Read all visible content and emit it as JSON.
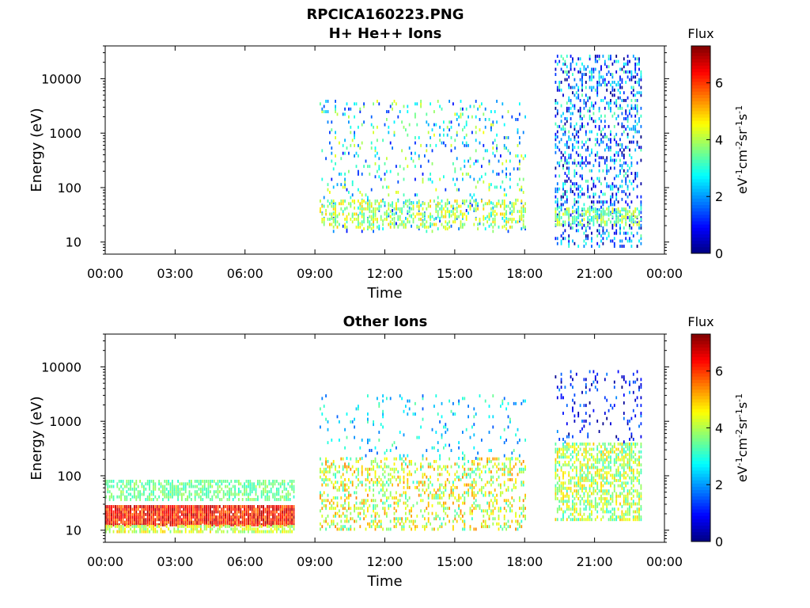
{
  "figure": {
    "title_line1": "RPCICA160223.PNG",
    "title_line2": "H+ He++ Ions"
  },
  "chart_data": [
    {
      "type": "heatmap",
      "title": "H+ He++ Ions",
      "xlabel": "Time",
      "ylabel": "Energy (eV)",
      "x_tick_labels": [
        "00:00",
        "03:00",
        "06:00",
        "09:00",
        "12:00",
        "15:00",
        "18:00",
        "21:00",
        "00:00"
      ],
      "x_range_hours": [
        0,
        24
      ],
      "y_scale": "log",
      "y_tick_labels": [
        "10",
        "100",
        "1000",
        "10000"
      ],
      "y_tick_values": [
        10,
        100,
        1000,
        10000
      ],
      "y_range": [
        6,
        40000
      ],
      "colorbar": {
        "title": "Flux",
        "label": "eV-1cm-2sr-1s-1",
        "range": [
          0,
          7.3
        ],
        "tick_labels": [
          "0",
          "2",
          "4",
          "6"
        ]
      },
      "grid": false,
      "regions": [
        {
          "t_start": 9.2,
          "t_end": 18.0,
          "e_min": 15,
          "e_max": 4000,
          "flux": [
            1,
            4.5
          ],
          "density": 0.1,
          "comment_free": true
        },
        {
          "t_start": 9.2,
          "t_end": 18.0,
          "e_min": 18,
          "e_max": 60,
          "flux": [
            3,
            5
          ],
          "density": 0.35
        },
        {
          "t_start": 19.3,
          "t_end": 23.0,
          "e_min": 8,
          "e_max": 25000,
          "flux": [
            0,
            3.5
          ],
          "density": 0.28
        },
        {
          "t_start": 19.3,
          "t_end": 23.0,
          "e_min": 20,
          "e_max": 40,
          "flux": [
            3,
            4.5
          ],
          "density": 0.5
        }
      ]
    },
    {
      "type": "heatmap",
      "title": "Other Ions",
      "xlabel": "Time",
      "ylabel": "Energy (eV)",
      "x_tick_labels": [
        "00:00",
        "03:00",
        "06:00",
        "09:00",
        "12:00",
        "15:00",
        "18:00",
        "21:00",
        "00:00"
      ],
      "x_range_hours": [
        0,
        24
      ],
      "y_scale": "log",
      "y_tick_labels": [
        "10",
        "100",
        "1000",
        "10000"
      ],
      "y_tick_values": [
        10,
        100,
        1000,
        10000
      ],
      "y_range": [
        6,
        40000
      ],
      "colorbar": {
        "title": "Flux",
        "label": "eV-1cm-2sr-1s-1",
        "range": [
          0,
          7.3
        ],
        "tick_labels": [
          "0",
          "2",
          "4",
          "6"
        ]
      },
      "grid": false,
      "regions": [
        {
          "t_start": 0.0,
          "t_end": 8.1,
          "e_min": 12,
          "e_max": 28,
          "flux": [
            5.5,
            7
          ],
          "density": 0.95
        },
        {
          "t_start": 0.0,
          "t_end": 8.1,
          "e_min": 9,
          "e_max": 12,
          "flux": [
            3.5,
            5
          ],
          "density": 0.6
        },
        {
          "t_start": 0.0,
          "t_end": 8.1,
          "e_min": 35,
          "e_max": 80,
          "flux": [
            3,
            4
          ],
          "density": 0.55
        },
        {
          "t_start": 9.2,
          "t_end": 18.0,
          "e_min": 10,
          "e_max": 200,
          "flux": [
            3,
            5.5
          ],
          "density": 0.3
        },
        {
          "t_start": 9.2,
          "t_end": 18.0,
          "e_min": 200,
          "e_max": 3000,
          "flux": [
            1.5,
            3.5
          ],
          "density": 0.06
        },
        {
          "t_start": 19.3,
          "t_end": 23.0,
          "e_min": 15,
          "e_max": 400,
          "flux": [
            3,
            5
          ],
          "density": 0.55
        },
        {
          "t_start": 19.3,
          "t_end": 23.0,
          "e_min": 400,
          "e_max": 8000,
          "flux": [
            0,
            2
          ],
          "density": 0.12
        }
      ]
    }
  ]
}
